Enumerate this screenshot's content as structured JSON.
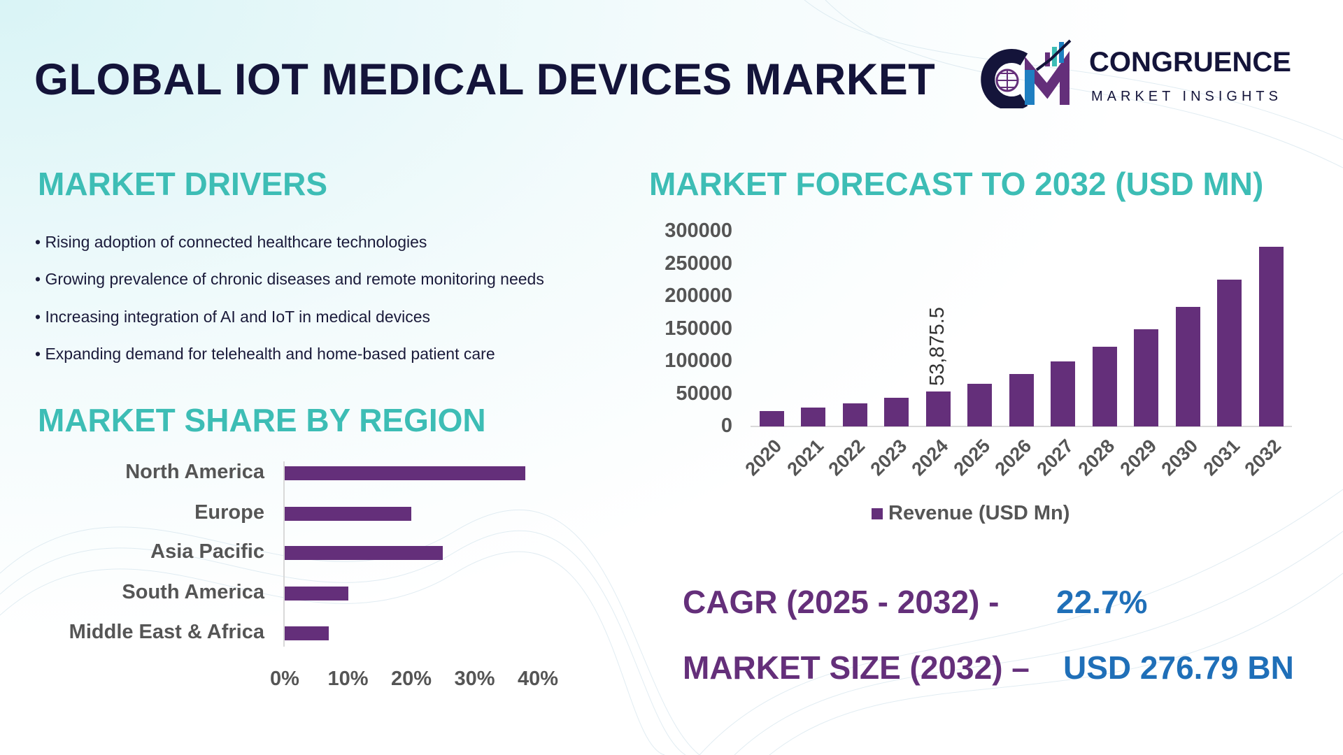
{
  "header": {
    "title": "GLOBAL IOT MEDICAL DEVICES MARKET"
  },
  "logo": {
    "brand": "CONGRUENCE",
    "tagline": "MARKET INSIGHTS",
    "colors": [
      "#14143a",
      "#642f7a",
      "#3dbdb5",
      "#1f7fc1"
    ]
  },
  "drivers": {
    "heading": "MARKET DRIVERS",
    "items": [
      "• Rising adoption of connected healthcare technologies",
      "• Growing prevalence of chronic diseases and remote monitoring needs",
      "• Increasing integration of AI and IoT in medical devices",
      "• Expanding demand for telehealth and home-based patient care"
    ]
  },
  "colors": {
    "heading": "#3dbdb5",
    "bar": "#642f7a",
    "title": "#14143a",
    "kpi_label": "#642f7a",
    "kpi_value": "#1f6fb8"
  },
  "chart_data": [
    {
      "type": "bar",
      "orientation": "horizontal",
      "title": "MARKET SHARE BY REGION",
      "categories": [
        "North America",
        "Europe",
        "Asia Pacific",
        "South America",
        "Middle East & Africa"
      ],
      "values": [
        38,
        20,
        25,
        10,
        7
      ],
      "unit": "%",
      "xticks": [
        "0%",
        "10%",
        "20%",
        "30%",
        "40%"
      ],
      "xlim": [
        0,
        40
      ],
      "grid": false
    },
    {
      "type": "bar",
      "title": "MARKET FORECAST TO 2032 (USD MN)",
      "categories": [
        "2020",
        "2021",
        "2022",
        "2023",
        "2024",
        "2025",
        "2026",
        "2027",
        "2028",
        "2029",
        "2030",
        "2031",
        "2032"
      ],
      "series": [
        {
          "name": "Revenue (USD Mn)",
          "values": [
            23700,
            29000,
            35500,
            43800,
            53875.5,
            66100,
            81100,
            99500,
            122100,
            149900,
            183900,
            225600,
            276790
          ]
        }
      ],
      "yticks": [
        "0",
        "50000",
        "100000",
        "150000",
        "200000",
        "250000",
        "300000"
      ],
      "ylim": [
        0,
        300000
      ],
      "data_labels": [
        {
          "category": "2024",
          "text": "53,875.5"
        }
      ],
      "legend": "bottom",
      "grid": false
    }
  ],
  "kpis": {
    "cagr_label": "CAGR (2025 - 2032) -",
    "cagr_value": "22.7%",
    "size_label": "MARKET SIZE (2032) –",
    "size_value": "USD 276.79 BN"
  }
}
